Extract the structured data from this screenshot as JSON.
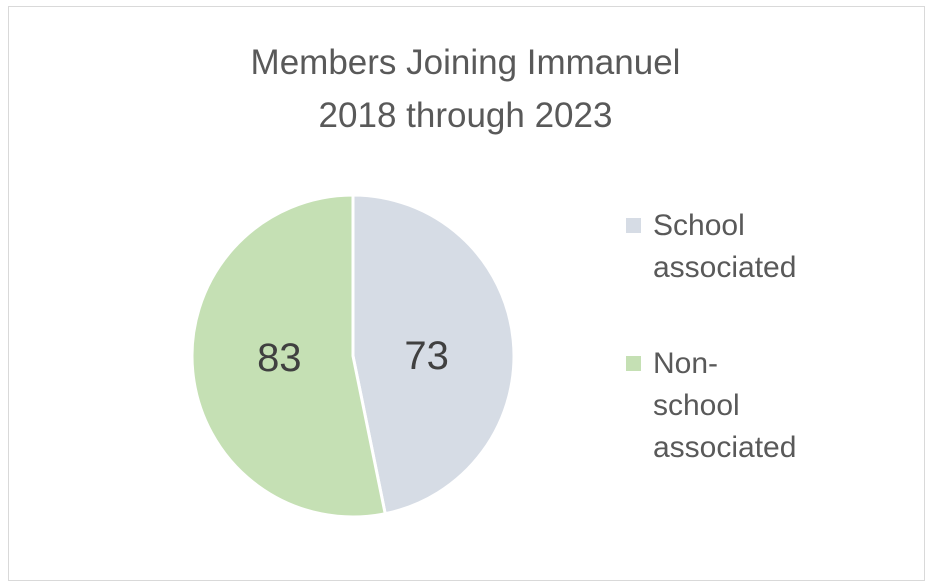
{
  "chart_data": {
    "type": "pie",
    "title_lines": [
      "Members Joining Immanuel",
      "2018 through 2023"
    ],
    "slices": [
      {
        "name": "School associated",
        "legend_lines": [
          "School",
          "associated"
        ],
        "value": 73,
        "color": "#d6dce5"
      },
      {
        "name": "Non-school associated",
        "legend_lines": [
          "Non-",
          "school",
          "associated"
        ],
        "value": 83,
        "color": "#c5e0b4"
      }
    ],
    "data_labels": true,
    "start": "12 o'clock, clockwise",
    "legend_position": "right"
  }
}
